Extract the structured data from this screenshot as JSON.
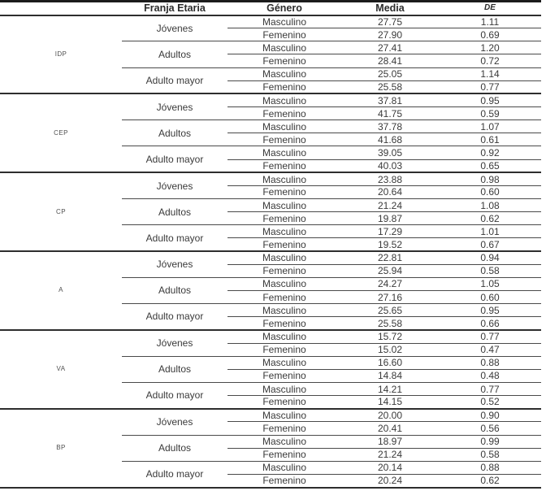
{
  "table": {
    "columns": {
      "group": "",
      "franja": "Franja Etaria",
      "genero": "Género",
      "media": "Media",
      "de": "DE"
    },
    "groups": [
      {
        "label": "IDP",
        "franjas": [
          {
            "label": "Jóvenes",
            "rows": [
              {
                "genero": "Masculino",
                "media": "27.75",
                "de": "1.11"
              },
              {
                "genero": "Femenino",
                "media": "27.90",
                "de": "0.69"
              }
            ]
          },
          {
            "label": "Adultos",
            "rows": [
              {
                "genero": "Masculino",
                "media": "27.41",
                "de": "1.20"
              },
              {
                "genero": "Femenino",
                "media": "28.41",
                "de": "0.72"
              }
            ]
          },
          {
            "label": "Adulto mayor",
            "rows": [
              {
                "genero": "Masculino",
                "media": "25.05",
                "de": "1.14"
              },
              {
                "genero": "Femenino",
                "media": "25.58",
                "de": "0.77"
              }
            ]
          }
        ]
      },
      {
        "label": "CEP",
        "franjas": [
          {
            "label": "Jóvenes",
            "rows": [
              {
                "genero": "Masculino",
                "media": "37.81",
                "de": "0.95"
              },
              {
                "genero": "Femenino",
                "media": "41.75",
                "de": "0.59"
              }
            ]
          },
          {
            "label": "Adultos",
            "rows": [
              {
                "genero": "Masculino",
                "media": "37.78",
                "de": "1.07"
              },
              {
                "genero": "Femenino",
                "media": "41.68",
                "de": "0.61"
              }
            ]
          },
          {
            "label": "Adulto mayor",
            "rows": [
              {
                "genero": "Masculino",
                "media": "39.05",
                "de": "0.92"
              },
              {
                "genero": "Femenino",
                "media": "40.03",
                "de": "0.65"
              }
            ]
          }
        ]
      },
      {
        "label": "CP",
        "franjas": [
          {
            "label": "Jóvenes",
            "rows": [
              {
                "genero": "Masculino",
                "media": "23.88",
                "de": "0.98"
              },
              {
                "genero": "Femenino",
                "media": "20.64",
                "de": "0.60"
              }
            ]
          },
          {
            "label": "Adultos",
            "rows": [
              {
                "genero": "Masculino",
                "media": "21.24",
                "de": "1.08"
              },
              {
                "genero": "Femenino",
                "media": "19.87",
                "de": "0.62"
              }
            ]
          },
          {
            "label": "Adulto mayor",
            "rows": [
              {
                "genero": "Masculino",
                "media": "17.29",
                "de": "1.01"
              },
              {
                "genero": "Femenino",
                "media": "19.52",
                "de": "0.67"
              }
            ]
          }
        ]
      },
      {
        "label": "A",
        "franjas": [
          {
            "label": "Jóvenes",
            "rows": [
              {
                "genero": "Masculino",
                "media": "22.81",
                "de": "0.94"
              },
              {
                "genero": "Femenino",
                "media": "25.94",
                "de": "0.58"
              }
            ]
          },
          {
            "label": "Adultos",
            "rows": [
              {
                "genero": "Masculino",
                "media": "24.27",
                "de": "1.05"
              },
              {
                "genero": "Femenino",
                "media": "27.16",
                "de": "0.60"
              }
            ]
          },
          {
            "label": "Adulto mayor",
            "rows": [
              {
                "genero": "Masculino",
                "media": "25.65",
                "de": "0.95"
              },
              {
                "genero": "Femenino",
                "media": "25.58",
                "de": "0.66"
              }
            ]
          }
        ]
      },
      {
        "label": "VA",
        "franjas": [
          {
            "label": "Jóvenes",
            "rows": [
              {
                "genero": "Masculino",
                "media": "15.72",
                "de": "0.77"
              },
              {
                "genero": "Femenino",
                "media": "15.02",
                "de": "0.47"
              }
            ]
          },
          {
            "label": "Adultos",
            "rows": [
              {
                "genero": "Masculino",
                "media": "16.60",
                "de": "0.88"
              },
              {
                "genero": "Femenino",
                "media": "14.84",
                "de": "0.48"
              }
            ]
          },
          {
            "label": "Adulto mayor",
            "rows": [
              {
                "genero": "Masculino",
                "media": "14.21",
                "de": "0.77"
              },
              {
                "genero": "Femenino",
                "media": "14.15",
                "de": "0.52"
              }
            ]
          }
        ]
      },
      {
        "label": "BP",
        "franjas": [
          {
            "label": "Jóvenes",
            "rows": [
              {
                "genero": "Masculino",
                "media": "20.00",
                "de": "0.90"
              },
              {
                "genero": "Femenino",
                "media": "20.41",
                "de": "0.56"
              }
            ]
          },
          {
            "label": "Adultos",
            "rows": [
              {
                "genero": "Masculino",
                "media": "18.97",
                "de": "0.99"
              },
              {
                "genero": "Femenino",
                "media": "21.24",
                "de": "0.58"
              }
            ]
          },
          {
            "label": "Adulto mayor",
            "rows": [
              {
                "genero": "Masculino",
                "media": "20.14",
                "de": "0.88"
              },
              {
                "genero": "Femenino",
                "media": "20.24",
                "de": "0.62"
              }
            ]
          }
        ]
      }
    ]
  }
}
